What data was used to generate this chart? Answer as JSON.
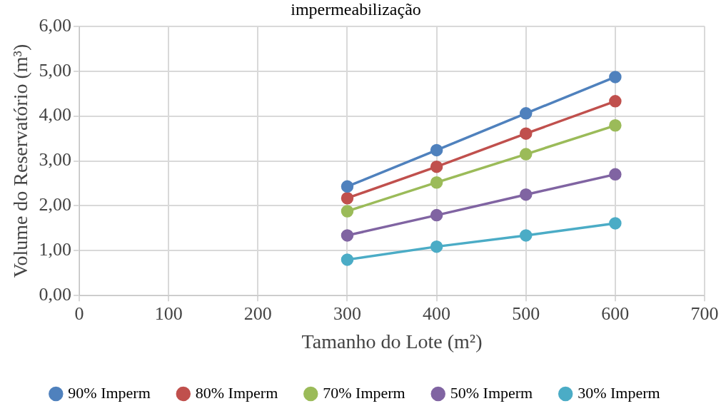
{
  "chart_data": {
    "type": "line",
    "title": "impermeabilização",
    "xlabel": "Tamanho do Lote (m²)",
    "ylabel": "Volume do Reservatório (m³)",
    "x": [
      300,
      400,
      500,
      600
    ],
    "xlim": [
      0,
      700
    ],
    "xticks": [
      0,
      100,
      200,
      300,
      400,
      500,
      600,
      700
    ],
    "ylim": [
      0,
      6
    ],
    "yticks": [
      {
        "value": 0,
        "label": "0,00"
      },
      {
        "value": 1,
        "label": "1,00"
      },
      {
        "value": 2,
        "label": "2,00"
      },
      {
        "value": 3,
        "label": "3,00"
      },
      {
        "value": 4,
        "label": "4,00"
      },
      {
        "value": 5,
        "label": "5,00"
      },
      {
        "value": 6,
        "label": "6,00"
      }
    ],
    "grid": true,
    "legend": "bottom",
    "marker": "circle",
    "line_style": "solid",
    "series": [
      {
        "name": "90% Imperm",
        "color": "#4f81bd",
        "values": [
          2.43,
          3.24,
          4.06,
          4.87
        ]
      },
      {
        "name": "80% Imperm",
        "color": "#c0504d",
        "values": [
          2.17,
          2.87,
          3.61,
          4.33
        ]
      },
      {
        "name": "70% Imperm",
        "color": "#9bbb59",
        "values": [
          1.88,
          2.52,
          3.15,
          3.79
        ]
      },
      {
        "name": "50% Imperm",
        "color": "#8064a2",
        "values": [
          1.34,
          1.79,
          2.25,
          2.7
        ]
      },
      {
        "name": "30% Imperm",
        "color": "#4bacc6",
        "values": [
          0.8,
          1.09,
          1.34,
          1.61
        ]
      }
    ]
  }
}
